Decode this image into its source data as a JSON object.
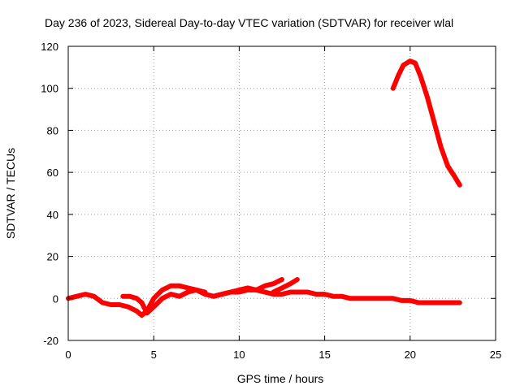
{
  "chart_data": {
    "type": "line",
    "title": "Day 236 of 2023, Sidereal Day-to-day VTEC variation (SDTVAR) for receiver wlal",
    "xlabel": "GPS time / hours",
    "ylabel": "SDTVAR / TECUs",
    "xlim": [
      0,
      25
    ],
    "ylim": [
      -20,
      120
    ],
    "x_ticks": [
      0,
      5,
      10,
      15,
      20,
      25
    ],
    "x_tick_labels": [
      "0",
      "5",
      "10",
      "15",
      "20",
      "25"
    ],
    "y_ticks": [
      -20,
      0,
      20,
      40,
      60,
      80,
      100,
      120
    ],
    "y_tick_labels": [
      "-20",
      "0",
      "20",
      "40",
      "60",
      "80",
      "100",
      "120"
    ],
    "grid": true,
    "legend": "none",
    "series": [
      {
        "name": "trace-1",
        "color": "#ff0000",
        "x": [
          0,
          0.5,
          1,
          1.5,
          2,
          2.5,
          3,
          3.5,
          4,
          4.3,
          4.6,
          5,
          5.5,
          6,
          6.5,
          7,
          7.5,
          8,
          8.5,
          9,
          9.5,
          10,
          10.5,
          11,
          11.5,
          12,
          12.5
        ],
        "y": [
          0,
          1,
          2,
          1,
          -2,
          -3,
          -3,
          -4,
          -6,
          -8,
          -6,
          0,
          4,
          6,
          6,
          5,
          4,
          2,
          1,
          2,
          3,
          4,
          5,
          4,
          6,
          7,
          9
        ]
      },
      {
        "name": "trace-2",
        "color": "#ff0000",
        "x": [
          3.2,
          3.6,
          4,
          4.3,
          4.6,
          5,
          5.5,
          6,
          6.5,
          7,
          7.5,
          8
        ],
        "y": [
          1,
          1,
          0,
          -2,
          -7,
          -4,
          0,
          2,
          1,
          3,
          4,
          3
        ]
      },
      {
        "name": "trace-3",
        "color": "#ff0000",
        "x": [
          8.5,
          9,
          9.5,
          10,
          10.5,
          11,
          11.5,
          12,
          12.5,
          13,
          13.5,
          14,
          14.5,
          15,
          15.5,
          16,
          16.5,
          17,
          17.5,
          18,
          18.5,
          19,
          19.5,
          20,
          20.5,
          21,
          21.5,
          22,
          22.5,
          22.9
        ],
        "y": [
          1,
          2,
          3,
          3,
          4,
          4,
          3,
          2,
          2,
          3,
          3,
          3,
          2,
          2,
          1,
          1,
          0,
          0,
          0,
          0,
          0,
          0,
          -1,
          -1,
          -2,
          -2,
          -2,
          -2,
          -2,
          -2
        ]
      },
      {
        "name": "trace-4",
        "color": "#ff0000",
        "x": [
          12,
          12.5,
          13,
          13.4
        ],
        "y": [
          3,
          5,
          7,
          9
        ]
      },
      {
        "name": "trace-5",
        "color": "#ff0000",
        "x": [
          19,
          19.3,
          19.6,
          20,
          20.3,
          20.6,
          21,
          21.4,
          21.8,
          22.2,
          22.6,
          22.9
        ],
        "y": [
          100,
          106,
          111,
          113,
          112,
          106,
          96,
          84,
          72,
          63,
          58,
          54
        ]
      }
    ]
  }
}
